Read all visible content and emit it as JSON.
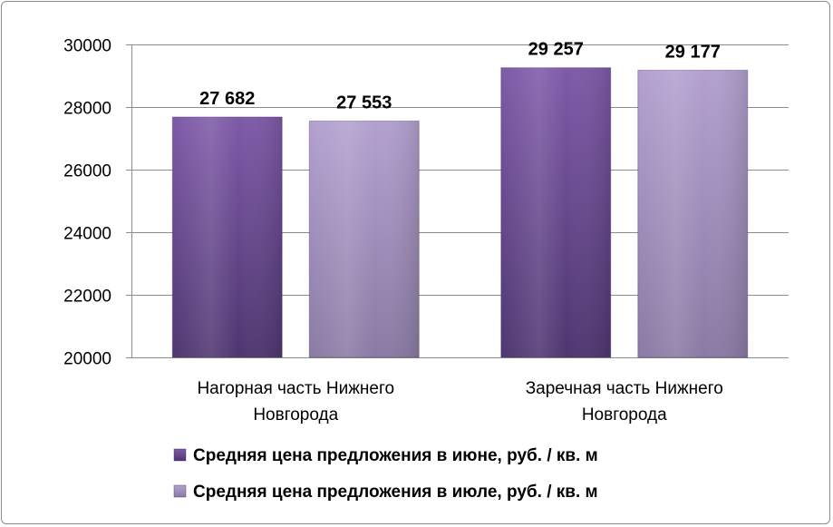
{
  "chart_data": {
    "type": "bar",
    "title": "",
    "xlabel": "",
    "ylabel": "",
    "ylim": [
      20000,
      30000
    ],
    "yticks": [
      20000,
      22000,
      24000,
      26000,
      28000,
      30000
    ],
    "ytick_labels": [
      "20000",
      "22000",
      "24000",
      "26000",
      "28000",
      "30000"
    ],
    "grid": true,
    "legend_position": "bottom",
    "categories": [
      [
        "Нагорная часть Нижнего",
        "Новгорода"
      ],
      [
        "Заречная часть Нижнего",
        "Новгорода"
      ]
    ],
    "series": [
      {
        "name": "Средняя цена предложения в июне, руб. / кв. м",
        "values": [
          27682,
          29257
        ],
        "labels": [
          "27 682",
          "29 257"
        ],
        "color": "#6a4b8f"
      },
      {
        "name": "Средняя цена предложения в июле, руб. / кв. м",
        "values": [
          27553,
          29177
        ],
        "labels": [
          "27 553",
          "29 177"
        ],
        "color": "#a48fc0"
      }
    ]
  }
}
